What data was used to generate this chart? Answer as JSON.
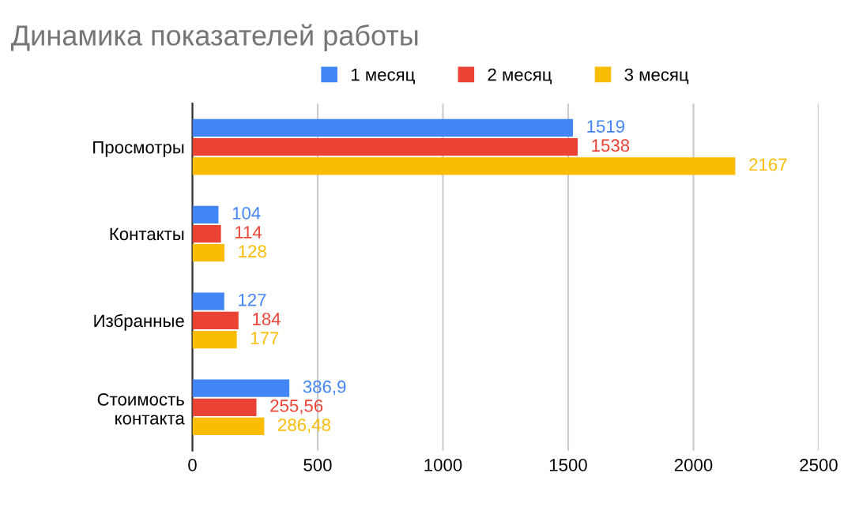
{
  "chart_data": {
    "type": "bar",
    "orientation": "horizontal",
    "title": "Динамика показателей работы",
    "categories": [
      "Просмотры",
      "Контакты",
      "Избранные",
      "Стоимость\nконтакта"
    ],
    "series": [
      {
        "name": "1 месяц",
        "color": "#4285f4",
        "values": [
          1519,
          104,
          127,
          386.9
        ],
        "value_labels": [
          "1519",
          "104",
          "127",
          "386,9"
        ]
      },
      {
        "name": "2 месяц",
        "color": "#ea4335",
        "values": [
          1538,
          114,
          184,
          255.56
        ],
        "value_labels": [
          "1538",
          "114",
          "184",
          "255,56"
        ]
      },
      {
        "name": "3 месяц",
        "color": "#fbbc04",
        "values": [
          2167,
          128,
          177,
          286.48
        ],
        "value_labels": [
          "2167",
          "128",
          "177",
          "286,48"
        ]
      }
    ],
    "xlim": [
      0,
      2500
    ],
    "xticks": [
      0,
      500,
      1000,
      1500,
      2000,
      2500
    ],
    "grid": "x",
    "legend": "top"
  }
}
